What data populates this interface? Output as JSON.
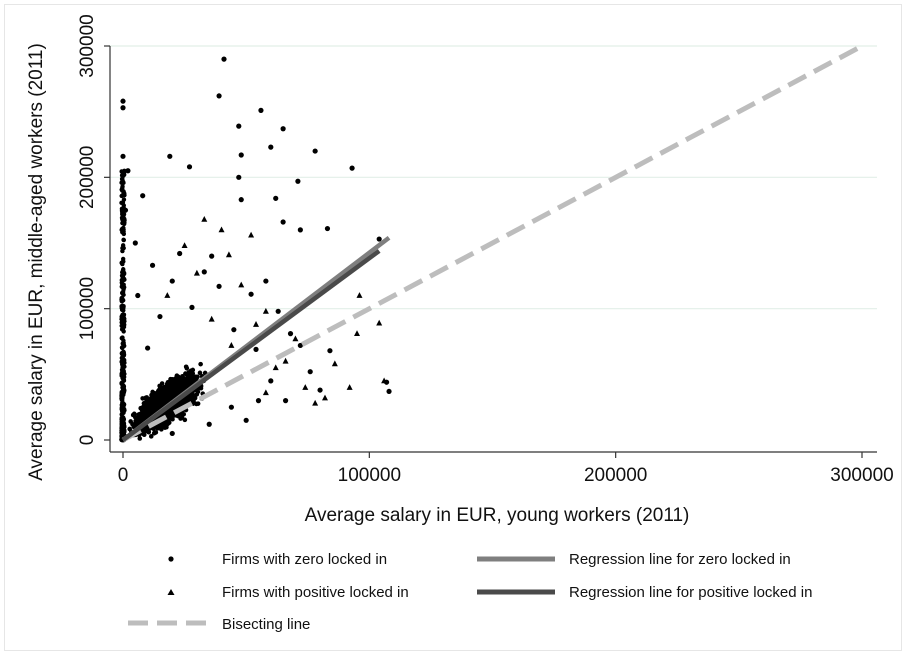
{
  "chart_data": {
    "type": "scatter",
    "xlabel": "Average salary in EUR, young workers (2011)",
    "ylabel": "Average salary in EUR, middle-aged workers (2011)",
    "xlim": [
      0,
      300000
    ],
    "ylim": [
      0,
      300000
    ],
    "x_ticks": [
      "0",
      "100000",
      "200000",
      "300000"
    ],
    "y_ticks": [
      "0",
      "100000",
      "200000",
      "300000"
    ],
    "grid": "horizontal",
    "legend_position": "bottom",
    "colors": {
      "points": "#000000",
      "reg_zero": "#7f7f7f",
      "reg_positive": "#4a4a4a",
      "bisect": "#bdbdbd",
      "grid": "#e2efe8"
    },
    "series": [
      {
        "name": "Firms with zero locked in",
        "marker": "circle",
        "points": [
          [
            41000,
            290000
          ],
          [
            39000,
            262000
          ],
          [
            0,
            258000
          ],
          [
            0,
            253000
          ],
          [
            56000,
            251000
          ],
          [
            47000,
            239000
          ],
          [
            65000,
            237000
          ],
          [
            60000,
            223000
          ],
          [
            78000,
            220000
          ],
          [
            0,
            216000
          ],
          [
            19000,
            216000
          ],
          [
            48000,
            217000
          ],
          [
            93000,
            207000
          ],
          [
            27000,
            208000
          ],
          [
            47000,
            200000
          ],
          [
            71000,
            197000
          ],
          [
            62000,
            184000
          ],
          [
            8000,
            186000
          ],
          [
            48000,
            183000
          ],
          [
            83000,
            161000
          ],
          [
            65000,
            166000
          ],
          [
            72000,
            160000
          ],
          [
            104000,
            153000
          ],
          [
            107000,
            44000
          ],
          [
            108000,
            37000
          ],
          [
            45000,
            84000
          ],
          [
            52000,
            111000
          ],
          [
            33000,
            128000
          ],
          [
            20000,
            121000
          ],
          [
            15000,
            94000
          ],
          [
            28000,
            101000
          ],
          [
            39000,
            117000
          ],
          [
            23000,
            142000
          ],
          [
            36000,
            140000
          ],
          [
            12000,
            133000
          ],
          [
            58000,
            121000
          ],
          [
            63000,
            98000
          ],
          [
            72000,
            72000
          ],
          [
            76000,
            52000
          ],
          [
            80000,
            38000
          ],
          [
            84000,
            68000
          ],
          [
            68000,
            81000
          ],
          [
            54000,
            69000
          ],
          [
            44000,
            25000
          ],
          [
            50000,
            15000
          ],
          [
            55000,
            30000
          ],
          [
            35000,
            12000
          ],
          [
            20000,
            5000
          ],
          [
            60000,
            45000
          ],
          [
            66000,
            30000
          ],
          [
            5000,
            150000
          ],
          [
            6000,
            110000
          ],
          [
            10000,
            70000
          ],
          [
            2000,
            205000
          ],
          [
            1000,
            175000
          ]
        ]
      },
      {
        "name": "Firms with positive locked in",
        "marker": "triangle",
        "points": [
          [
            33000,
            168000
          ],
          [
            52000,
            156000
          ],
          [
            43000,
            141000
          ],
          [
            30000,
            127000
          ],
          [
            96000,
            110000
          ],
          [
            104000,
            89000
          ],
          [
            95000,
            81000
          ],
          [
            58000,
            98000
          ],
          [
            70000,
            77000
          ],
          [
            62000,
            55000
          ],
          [
            74000,
            40000
          ],
          [
            82000,
            32000
          ],
          [
            92000,
            40000
          ],
          [
            106000,
            45000
          ],
          [
            40000,
            160000
          ],
          [
            25000,
            148000
          ],
          [
            48000,
            118000
          ],
          [
            18000,
            110000
          ],
          [
            66000,
            60000
          ],
          [
            78000,
            28000
          ],
          [
            58000,
            36000
          ],
          [
            44000,
            72000
          ],
          [
            36000,
            92000
          ],
          [
            54000,
            88000
          ],
          [
            86000,
            58000
          ]
        ]
      },
      {
        "name": "Regression line for zero locked in",
        "line": [
          [
            0,
            0
          ],
          [
            108000,
            154000
          ]
        ]
      },
      {
        "name": "Regression line for positive locked in",
        "line": [
          [
            0,
            0
          ],
          [
            104000,
            144000
          ]
        ]
      },
      {
        "name": "Bisecting line",
        "line": [
          [
            0,
            0
          ],
          [
            300000,
            300000
          ]
        ]
      }
    ]
  }
}
